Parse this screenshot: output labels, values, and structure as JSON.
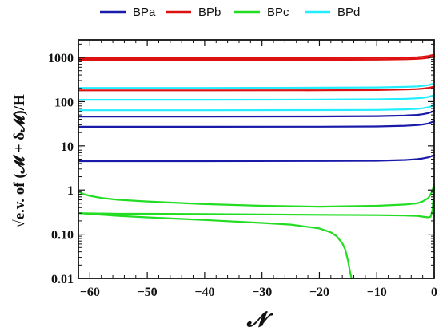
{
  "chart_data": {
    "type": "line",
    "xlabel": "𝓝",
    "ylabel": "√e.v. of (𝓜 + δ𝓜)/H",
    "yscale": "log",
    "xlim": [
      -62,
      0
    ],
    "ylim": [
      0.01,
      2500
    ],
    "x_ticks": [
      -60,
      -50,
      -40,
      -30,
      -20,
      -10,
      0
    ],
    "x_tick_labels": [
      "−60",
      "−50",
      "−40",
      "−30",
      "−20",
      "−10",
      "0"
    ],
    "y_ticks": [
      0.01,
      0.1,
      1,
      10,
      100,
      1000
    ],
    "y_tick_labels": [
      "0.01",
      "0.10",
      "1",
      "10",
      "100",
      "1000"
    ],
    "legend_position": "top",
    "grid": false,
    "series": [
      {
        "name": "BPa",
        "color": "#1a1aaa",
        "curves": [
          {
            "x": [
              -62,
              -40,
              -20,
              -10,
              -5,
              -3,
              -2,
              -1,
              -0.5,
              0
            ],
            "y": [
              4.5,
              4.5,
              4.55,
              4.6,
              4.8,
              5.0,
              5.2,
              5.5,
              5.8,
              6.2
            ]
          },
          {
            "x": [
              -62,
              -40,
              -20,
              -10,
              -5,
              -3,
              -2,
              -1,
              -0.5,
              0
            ],
            "y": [
              27,
              27,
              27.2,
              27.5,
              28.5,
              29.5,
              30.5,
              32,
              34,
              36
            ]
          },
          {
            "x": [
              -62,
              -40,
              -20,
              -10,
              -5,
              -3,
              -2,
              -1,
              -0.5,
              0
            ],
            "y": [
              46,
              46,
              46.3,
              47,
              48.5,
              50,
              52,
              55,
              58,
              62
            ]
          }
        ]
      },
      {
        "name": "BPb",
        "color": "#dd1111",
        "curves": [
          {
            "x": [
              -62,
              -40,
              -20,
              -10,
              -5,
              -3,
              -2,
              -1,
              -0.5,
              0
            ],
            "y": [
              180,
              180,
              181,
              183,
              188,
              192,
              197,
              205,
              212,
              220
            ]
          },
          {
            "x": [
              -62,
              -40,
              -20,
              -10,
              -5,
              -3,
              -2,
              -1,
              -0.5,
              0
            ],
            "y": [
              880,
              880,
              885,
              890,
              910,
              930,
              950,
              985,
              1020,
              1060
            ]
          },
          {
            "x": [
              -62,
              -40,
              -20,
              -10,
              -5,
              -3,
              -2,
              -1,
              -0.5,
              0
            ],
            "y": [
              960,
              960,
              965,
              970,
              990,
              1010,
              1035,
              1075,
              1110,
              1150
            ]
          }
        ]
      },
      {
        "name": "BPc",
        "color": "#22dd22",
        "curves": [
          {
            "x": [
              -62,
              -61,
              -60,
              -58,
              -55,
              -50,
              -40,
              -30,
              -20,
              -10,
              -5,
              -3,
              -2,
              -1,
              -0.5,
              0
            ],
            "y": [
              0.92,
              0.8,
              0.74,
              0.66,
              0.6,
              0.55,
              0.48,
              0.44,
              0.42,
              0.44,
              0.47,
              0.5,
              0.55,
              0.66,
              0.85,
              1.3
            ]
          },
          {
            "x": [
              -62,
              -55,
              -50,
              -40,
              -30,
              -20,
              -10,
              -5,
              -3,
              -2,
              -1,
              -0.6,
              -0.3,
              0
            ],
            "y": [
              0.3,
              0.29,
              0.29,
              0.285,
              0.28,
              0.275,
              0.27,
              0.265,
              0.26,
              0.25,
              0.24,
              0.25,
              0.35,
              1.1
            ]
          },
          {
            "x": [
              -62,
              -55,
              -50,
              -40,
              -30,
              -25,
              -20,
              -18,
              -17,
              -16,
              -15.5,
              -15,
              -14.7,
              -14.4
            ],
            "y": [
              0.3,
              0.26,
              0.24,
              0.21,
              0.18,
              0.165,
              0.135,
              0.11,
              0.09,
              0.062,
              0.045,
              0.025,
              0.015,
              0.01
            ]
          }
        ]
      },
      {
        "name": "BPd",
        "color": "#22eeff",
        "curves": [
          {
            "x": [
              -62,
              -40,
              -20,
              -10,
              -5,
              -3,
              -2,
              -1,
              -0.5,
              0
            ],
            "y": [
              64,
              64,
              64.5,
              65,
              67,
              69,
              71,
              75,
              79,
              84
            ]
          },
          {
            "x": [
              -62,
              -40,
              -20,
              -10,
              -5,
              -3,
              -2,
              -1,
              -0.5,
              0
            ],
            "y": [
              110,
              110,
              111,
              113,
              116,
              119,
              122,
              128,
              134,
              140
            ]
          },
          {
            "x": [
              -62,
              -40,
              -20,
              -10,
              -5,
              -3,
              -2,
              -1,
              -0.5,
              0
            ],
            "y": [
              205,
              205,
              207,
              210,
              216,
              221,
              227,
              237,
              247,
              258
            ]
          }
        ]
      }
    ]
  }
}
